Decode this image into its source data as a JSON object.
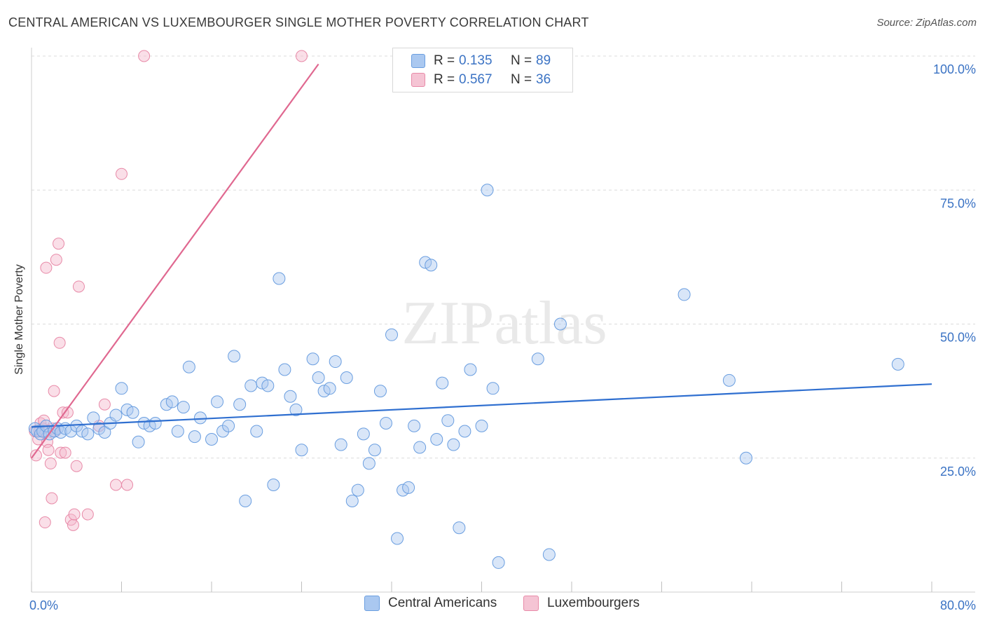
{
  "title": "CENTRAL AMERICAN VS LUXEMBOURGER SINGLE MOTHER POVERTY CORRELATION CHART",
  "source": "Source: ZipAtlas.com",
  "watermark": "ZIPatlas",
  "legend": {
    "rows": [
      {
        "r_label": "R =",
        "r_value": "0.135",
        "n_label": "N =",
        "n_value": "89"
      },
      {
        "r_label": "R =",
        "r_value": "0.567",
        "n_label": "N =",
        "n_value": "36"
      }
    ]
  },
  "bottom_legend": {
    "items": [
      "Central Americans",
      "Luxembourgers"
    ]
  },
  "chart_data": {
    "type": "scatter",
    "title": "CENTRAL AMERICAN VS LUXEMBOURGER SINGLE MOTHER POVERTY CORRELATION CHART",
    "xlabel": "",
    "ylabel": "Single Mother Poverty",
    "xlim": [
      0,
      80
    ],
    "ylim": [
      0,
      100
    ],
    "x_tick_labels": [
      "0.0%",
      "80.0%"
    ],
    "y_tick_labels": [
      "25.0%",
      "50.0%",
      "75.0%",
      "100.0%"
    ],
    "y_ticks": [
      25,
      50,
      75,
      100
    ],
    "grid": true,
    "colors": {
      "blue_fill": "#aac8f0",
      "blue_stroke": "#6a9ee0",
      "blue_line": "#2f6fd0",
      "pink_fill": "#f5b8cc",
      "pink_stroke": "#e88aa8",
      "pink_line": "#e06890",
      "axis_text": "#3b73c4"
    },
    "series": [
      {
        "name": "Central Americans",
        "color": "#6a9ee0",
        "R": 0.135,
        "N": 89,
        "trend": {
          "x": [
            0,
            80
          ],
          "y": [
            30.8,
            38.8
          ]
        },
        "points": [
          [
            0.3,
            30.5
          ],
          [
            0.5,
            30.0
          ],
          [
            0.8,
            29.5
          ],
          [
            1.0,
            30.0
          ],
          [
            1.3,
            31.0
          ],
          [
            1.6,
            29.5
          ],
          [
            2.0,
            30.0
          ],
          [
            2.3,
            30.5
          ],
          [
            2.6,
            29.8
          ],
          [
            3.0,
            30.5
          ],
          [
            3.5,
            30.0
          ],
          [
            4.0,
            31.0
          ],
          [
            4.5,
            30.0
          ],
          [
            5.0,
            29.5
          ],
          [
            5.5,
            32.5
          ],
          [
            6.0,
            30.5
          ],
          [
            6.5,
            29.8
          ],
          [
            7.0,
            31.5
          ],
          [
            7.5,
            33.0
          ],
          [
            8.0,
            38.0
          ],
          [
            8.5,
            34.0
          ],
          [
            9.0,
            33.5
          ],
          [
            9.5,
            28.0
          ],
          [
            10.0,
            31.5
          ],
          [
            10.5,
            31.0
          ],
          [
            11.0,
            31.5
          ],
          [
            12.0,
            35.0
          ],
          [
            12.5,
            35.5
          ],
          [
            13.0,
            30.0
          ],
          [
            13.5,
            34.5
          ],
          [
            14.0,
            42.0
          ],
          [
            14.5,
            29.0
          ],
          [
            15.0,
            32.5
          ],
          [
            16.0,
            28.5
          ],
          [
            16.5,
            35.5
          ],
          [
            17.0,
            30.0
          ],
          [
            17.5,
            31.0
          ],
          [
            18.0,
            44.0
          ],
          [
            18.5,
            35.0
          ],
          [
            19.0,
            17.0
          ],
          [
            19.5,
            38.5
          ],
          [
            20.0,
            30.0
          ],
          [
            20.5,
            39.0
          ],
          [
            21.0,
            38.5
          ],
          [
            21.5,
            20.0
          ],
          [
            22.0,
            58.5
          ],
          [
            22.5,
            41.5
          ],
          [
            23.0,
            36.5
          ],
          [
            23.5,
            34.0
          ],
          [
            24.0,
            26.5
          ],
          [
            25.0,
            43.5
          ],
          [
            25.5,
            40.0
          ],
          [
            26.0,
            37.5
          ],
          [
            26.5,
            38.0
          ],
          [
            27.0,
            43.0
          ],
          [
            27.5,
            27.5
          ],
          [
            28.0,
            40.0
          ],
          [
            28.5,
            17.0
          ],
          [
            29.0,
            19.0
          ],
          [
            29.5,
            29.5
          ],
          [
            30.0,
            24.0
          ],
          [
            30.5,
            26.5
          ],
          [
            31.0,
            37.5
          ],
          [
            31.5,
            31.5
          ],
          [
            32.0,
            48.0
          ],
          [
            32.5,
            10.0
          ],
          [
            33.0,
            19.0
          ],
          [
            33.5,
            19.5
          ],
          [
            34.0,
            31.0
          ],
          [
            34.5,
            27.0
          ],
          [
            35.0,
            61.5
          ],
          [
            35.5,
            61.0
          ],
          [
            36.0,
            28.5
          ],
          [
            36.5,
            39.0
          ],
          [
            37.0,
            32.0
          ],
          [
            37.5,
            27.5
          ],
          [
            38.0,
            12.0
          ],
          [
            38.5,
            30.0
          ],
          [
            39.0,
            41.5
          ],
          [
            40.0,
            31.0
          ],
          [
            40.5,
            75.0
          ],
          [
            41.0,
            38.0
          ],
          [
            41.5,
            5.5
          ],
          [
            45.0,
            43.5
          ],
          [
            46.0,
            7.0
          ],
          [
            47.0,
            50.0
          ],
          [
            58.0,
            55.5
          ],
          [
            62.0,
            39.5
          ],
          [
            63.5,
            25.0
          ],
          [
            77.0,
            42.5
          ]
        ]
      },
      {
        "name": "Luxembourgers",
        "color": "#e88aa8",
        "R": 0.567,
        "N": 36,
        "trend": {
          "x": [
            0,
            25.5
          ],
          "y": [
            25.0,
            98.5
          ]
        },
        "points": [
          [
            0.3,
            30.0
          ],
          [
            0.4,
            25.5
          ],
          [
            0.6,
            28.5
          ],
          [
            0.8,
            31.5
          ],
          [
            1.0,
            30.5
          ],
          [
            1.2,
            13.0
          ],
          [
            1.3,
            60.5
          ],
          [
            1.4,
            28.0
          ],
          [
            1.5,
            26.5
          ],
          [
            1.7,
            24.0
          ],
          [
            1.8,
            17.5
          ],
          [
            1.9,
            30.5
          ],
          [
            2.0,
            37.5
          ],
          [
            2.2,
            62.0
          ],
          [
            2.4,
            65.0
          ],
          [
            2.5,
            46.5
          ],
          [
            2.6,
            26.0
          ],
          [
            2.8,
            33.5
          ],
          [
            3.0,
            26.0
          ],
          [
            3.2,
            33.5
          ],
          [
            3.5,
            13.5
          ],
          [
            3.7,
            12.5
          ],
          [
            3.8,
            14.5
          ],
          [
            4.0,
            23.5
          ],
          [
            4.2,
            57.0
          ],
          [
            5.0,
            14.5
          ],
          [
            6.0,
            31.0
          ],
          [
            6.5,
            35.0
          ],
          [
            7.5,
            20.0
          ],
          [
            8.0,
            78.0
          ],
          [
            8.5,
            20.0
          ],
          [
            10.0,
            100.0
          ],
          [
            24.0,
            100.0
          ],
          [
            0.7,
            30.0
          ],
          [
            1.1,
            32.0
          ],
          [
            2.1,
            30.0
          ]
        ]
      }
    ]
  }
}
